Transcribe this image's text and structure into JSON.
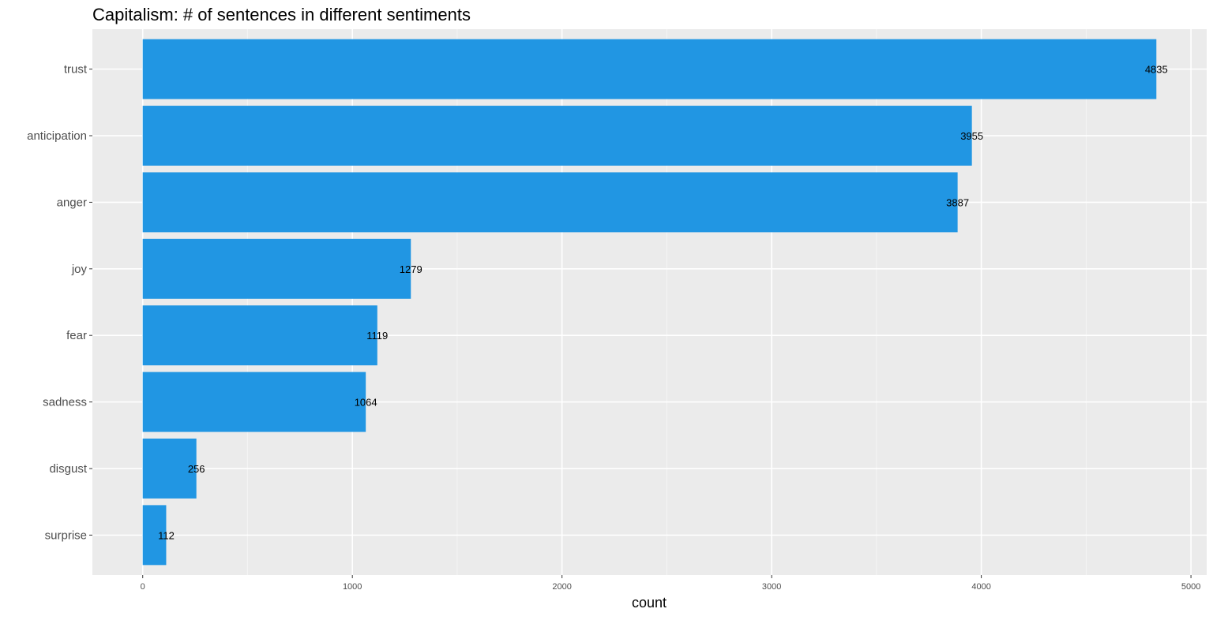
{
  "chart_data": {
    "type": "bar",
    "orientation": "horizontal",
    "title": "Capitalism: # of sentences in different sentiments",
    "xlabel": "count",
    "ylabel": "",
    "categories": [
      "trust",
      "anticipation",
      "anger",
      "joy",
      "fear",
      "sadness",
      "disgust",
      "surprise"
    ],
    "values": [
      4835,
      3955,
      3887,
      1279,
      1119,
      1064,
      256,
      112
    ],
    "data_labels": [
      "4835",
      "3955",
      "3887",
      "1279",
      "1119",
      "1064",
      "256",
      "112"
    ],
    "x_ticks": [
      0,
      1000,
      2000,
      3000,
      4000,
      5000
    ],
    "x_tick_labels": [
      "0",
      "1000",
      "2000",
      "3000",
      "4000",
      "5000"
    ],
    "xlim": [
      -240,
      5075
    ],
    "grid": true,
    "colors": {
      "bar": "#2196E3",
      "panel_background": "#EBEBEB",
      "grid_major": "#FFFFFF",
      "grid_minor": "#F5F5F5"
    }
  }
}
